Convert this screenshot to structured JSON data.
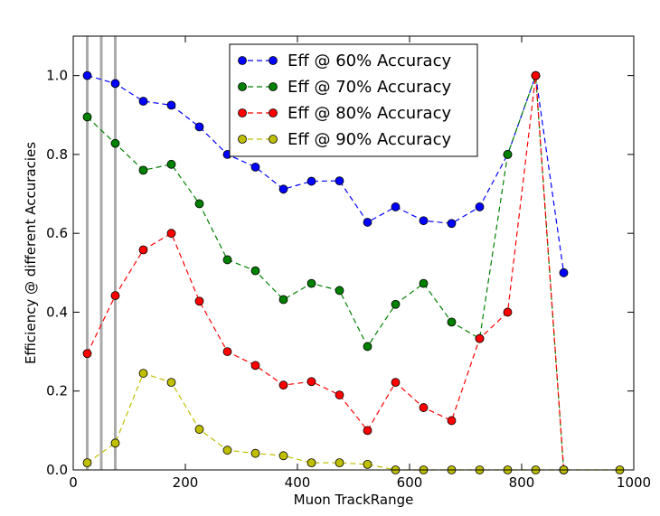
{
  "chart_data": {
    "type": "line",
    "xlabel": "Muon TrackRange",
    "ylabel": "Efficiency @ different Accuracies",
    "xlim": [
      0,
      1000
    ],
    "ylim": [
      0,
      1.1
    ],
    "x_ticks": [
      "0",
      "200",
      "400",
      "600",
      "800",
      "1000"
    ],
    "y_ticks": [
      "0.0",
      "0.2",
      "0.4",
      "0.6",
      "0.8",
      "1.0"
    ],
    "x_tick_values": [
      0,
      200,
      400,
      600,
      800,
      1000
    ],
    "y_tick_values": [
      0,
      0.2,
      0.4,
      0.6,
      0.8,
      1.0
    ],
    "vertical_lines": [
      25,
      50,
      75
    ],
    "vertical_line_color": "#aaaaaa",
    "legend_position": "top-center",
    "grid": false,
    "series": [
      {
        "name": "Eff @ 60% Accuracy",
        "color": "#0000ff",
        "x": [
          25,
          75,
          125,
          175,
          225,
          275,
          325,
          375,
          425,
          475,
          525,
          575,
          625,
          675,
          725,
          775,
          825,
          875
        ],
        "y": [
          1.0,
          0.98,
          0.935,
          0.925,
          0.87,
          0.8,
          0.768,
          0.712,
          0.732,
          0.733,
          0.628,
          0.667,
          0.632,
          0.625,
          0.667,
          0.8,
          1.0,
          0.5
        ]
      },
      {
        "name": "Eff @ 70% Accuracy",
        "color": "#008000",
        "x": [
          25,
          75,
          125,
          175,
          225,
          275,
          325,
          375,
          425,
          475,
          525,
          575,
          625,
          675,
          725,
          775,
          825,
          875
        ],
        "y": [
          0.895,
          0.828,
          0.76,
          0.775,
          0.675,
          0.533,
          0.505,
          0.432,
          0.473,
          0.455,
          0.313,
          0.42,
          0.473,
          0.375,
          0.333,
          0.8,
          1.0,
          0.0
        ]
      },
      {
        "name": "Eff @ 80% Accuracy",
        "color": "#ff0000",
        "x": [
          25,
          75,
          125,
          175,
          225,
          275,
          325,
          375,
          425,
          475,
          525,
          575,
          625,
          675,
          725,
          775,
          825,
          875
        ],
        "y": [
          0.295,
          0.442,
          0.558,
          0.6,
          0.428,
          0.3,
          0.265,
          0.215,
          0.224,
          0.19,
          0.1,
          0.222,
          0.158,
          0.125,
          0.333,
          0.4,
          1.0,
          0.0
        ]
      },
      {
        "name": "Eff @ 90% Accuracy",
        "color": "#bfbf00",
        "x": [
          25,
          75,
          125,
          175,
          225,
          275,
          325,
          375,
          425,
          475,
          525,
          575,
          625,
          675,
          725,
          775,
          825,
          875,
          975
        ],
        "y": [
          0.018,
          0.068,
          0.245,
          0.222,
          0.103,
          0.05,
          0.042,
          0.036,
          0.018,
          0.018,
          0.014,
          0.0,
          0.0,
          0.0,
          0.0,
          0.0,
          0.0,
          0.0,
          0.0
        ]
      }
    ]
  }
}
